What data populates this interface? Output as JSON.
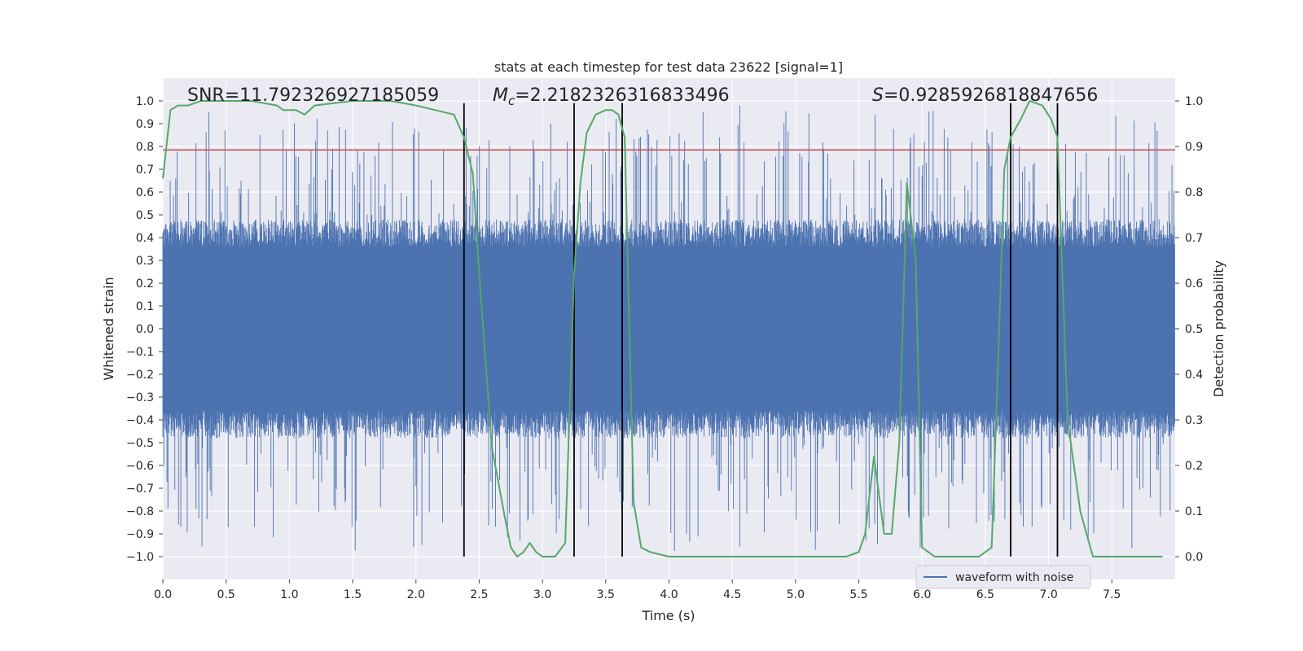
{
  "chart_data": {
    "type": "line",
    "title": "stats at each timestep for test data 23622 [signal=1]",
    "xlabel": "Time (s)",
    "ylabel_left": "Whitened strain",
    "ylabel_right": "Detection probability",
    "xlim": [
      0.0,
      8.0
    ],
    "ylim_left": [
      -1.1,
      1.1
    ],
    "ylim_right": [
      -0.05,
      1.05
    ],
    "x_ticks": [
      "0.0",
      "0.5",
      "1.0",
      "1.5",
      "2.0",
      "2.5",
      "3.0",
      "3.5",
      "4.0",
      "4.5",
      "5.0",
      "5.5",
      "6.0",
      "6.5",
      "7.0",
      "7.5"
    ],
    "y_left_ticks": [
      "1.0",
      "0.9",
      "0.8",
      "0.7",
      "0.6",
      "0.5",
      "0.4",
      "0.3",
      "0.2",
      "0.1",
      "0.0",
      "-0.1",
      "-0.2",
      "-0.3",
      "-0.4",
      "-0.5",
      "-0.6",
      "-0.7",
      "-0.8",
      "-0.9",
      "-1.0"
    ],
    "y_right_ticks": [
      "1.0",
      "0.9",
      "0.8",
      "0.7",
      "0.6",
      "0.5",
      "0.4",
      "0.3",
      "0.2",
      "0.1",
      "0.0"
    ],
    "annotations": {
      "snr": "SNR=11.792326927185059",
      "mc_symbol": "M",
      "mc_subscript": "c",
      "mc_value": "=2.2182326316833496",
      "s_symbol": "S",
      "s_value": "=0.9285926818847656"
    },
    "legend": {
      "placement": "lower-right",
      "entries": [
        "waveform with noise"
      ]
    },
    "threshold": {
      "y_left": 0.785,
      "color": "#c44e52"
    },
    "vertical_lines": [
      2.38,
      3.25,
      3.63,
      6.7,
      7.07
    ],
    "series": [
      {
        "name": "waveform with noise",
        "color": "#4c72b0",
        "envelope": "dense random noise, mostly within +/-0.45 with peaks to +/-1.0"
      },
      {
        "name": "detection probability",
        "color": "#55a868",
        "x": [
          0.0,
          0.06,
          0.12,
          0.2,
          0.3,
          0.5,
          0.7,
          0.9,
          0.95,
          1.05,
          1.12,
          1.2,
          1.5,
          1.8,
          2.0,
          2.15,
          2.3,
          2.38,
          2.45,
          2.5,
          2.6,
          2.7,
          2.75,
          2.8,
          2.85,
          2.9,
          2.95,
          3.0,
          3.1,
          3.18,
          3.25,
          3.3,
          3.35,
          3.42,
          3.5,
          3.55,
          3.6,
          3.65,
          3.72,
          3.78,
          3.85,
          4.0,
          4.5,
          5.0,
          5.4,
          5.5,
          5.55,
          5.62,
          5.7,
          5.76,
          5.82,
          5.88,
          5.95,
          6.0,
          6.1,
          6.3,
          6.45,
          6.55,
          6.6,
          6.65,
          6.7,
          6.78,
          6.85,
          6.95,
          7.02,
          7.07,
          7.15,
          7.25,
          7.35,
          7.6,
          7.9
        ],
        "y": [
          0.83,
          0.98,
          0.99,
          0.99,
          1.0,
          1.0,
          1.0,
          0.99,
          0.98,
          0.98,
          0.97,
          0.99,
          1.0,
          1.0,
          0.99,
          0.98,
          0.97,
          0.92,
          0.84,
          0.62,
          0.24,
          0.09,
          0.02,
          0.0,
          0.01,
          0.03,
          0.01,
          0.0,
          0.0,
          0.03,
          0.62,
          0.82,
          0.93,
          0.97,
          0.98,
          0.98,
          0.97,
          0.92,
          0.12,
          0.02,
          0.01,
          0.0,
          0.0,
          0.0,
          0.0,
          0.01,
          0.05,
          0.22,
          0.05,
          0.05,
          0.25,
          0.82,
          0.65,
          0.02,
          0.0,
          0.0,
          0.0,
          0.02,
          0.42,
          0.85,
          0.92,
          0.96,
          1.0,
          0.99,
          0.96,
          0.92,
          0.3,
          0.1,
          0.0,
          0.0,
          0.0
        ]
      }
    ]
  }
}
